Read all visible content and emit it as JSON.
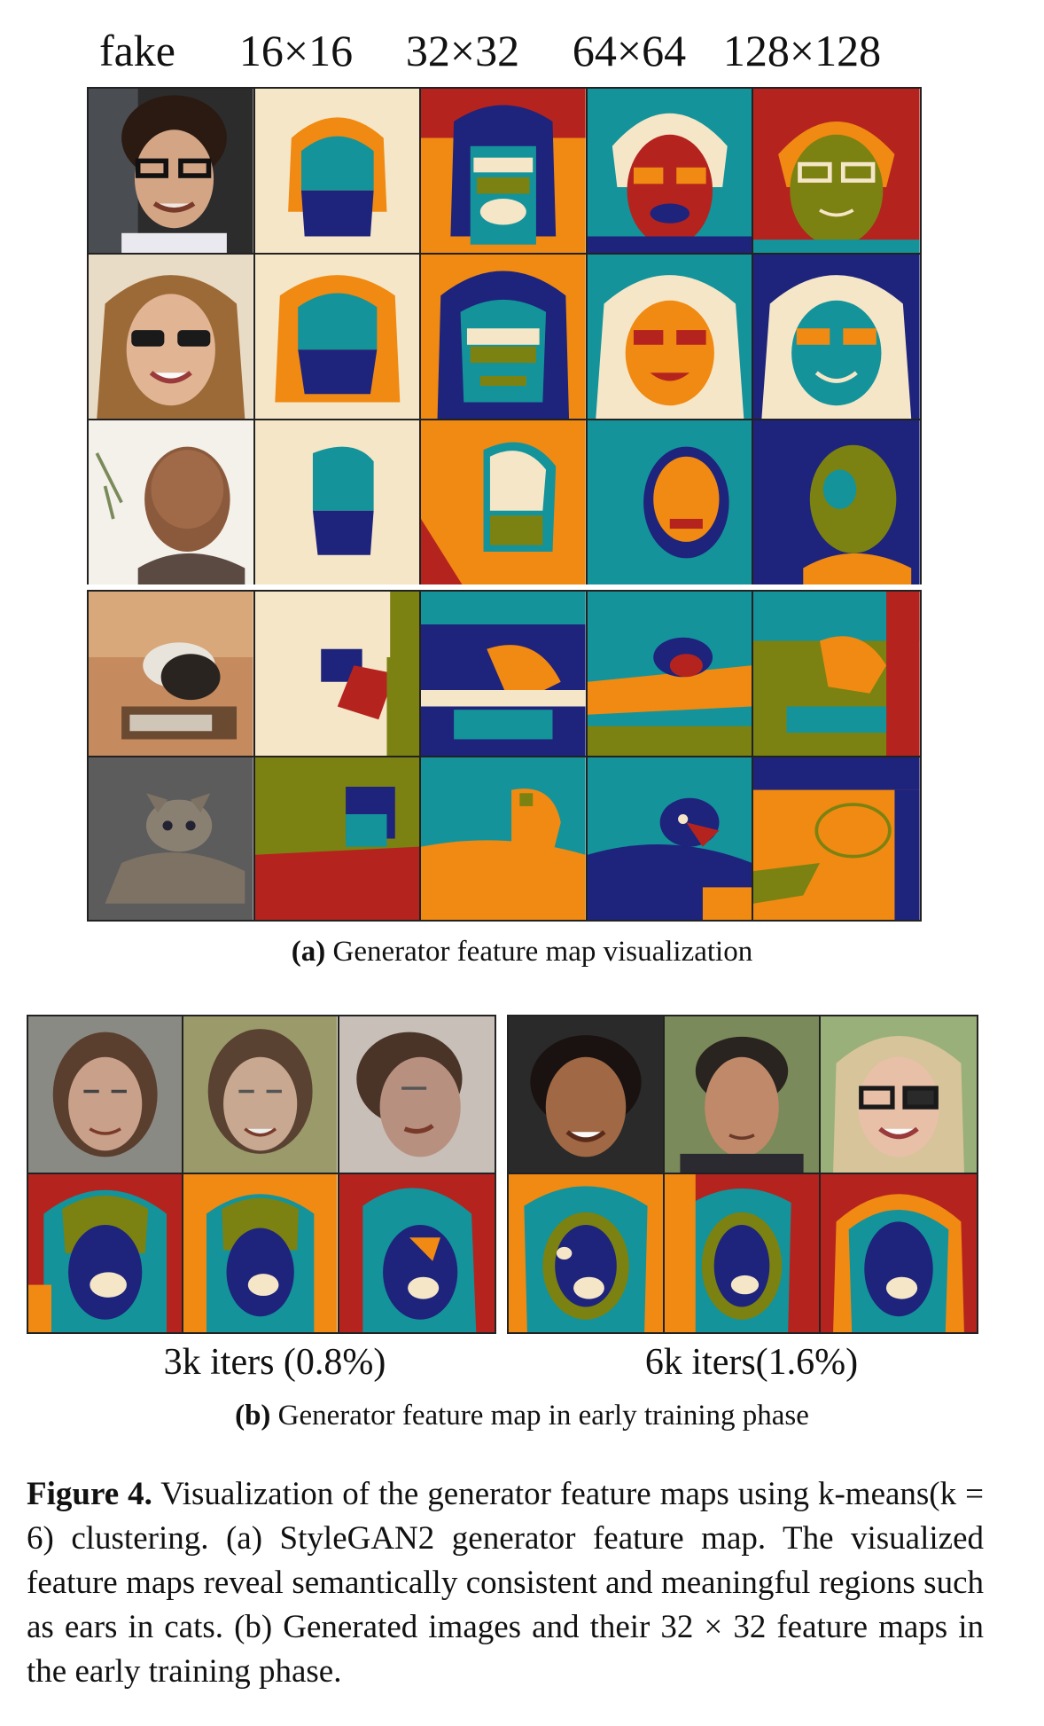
{
  "column_labels": [
    "fake",
    "16×16",
    "32×32",
    "64×64",
    "128×128"
  ],
  "caption_a": {
    "tag": "(a)",
    "text": " Generator feature map visualization"
  },
  "iter_labels": [
    "3k iters (0.8%)",
    "6k iters(1.6%)"
  ],
  "caption_b": {
    "tag": "(b)",
    "text": " Generator feature map in early training phase"
  },
  "figure_caption": {
    "label": "Figure 4.",
    "text": " Visualization of the generator feature maps using k-means(k = 6) clustering. (a) StyleGAN2 generator feature map. The visualized feature maps reveal semantically consistent and meaningful regions such as ears in cats. (b) Generated images and their 32 × 32 feature maps in the early training phase."
  },
  "palette": {
    "cream": "#f5e6c8",
    "orange": "#f08a12",
    "teal": "#14939a",
    "navy": "#1e237c",
    "olive": "#7b8211",
    "red": "#b5231f"
  }
}
